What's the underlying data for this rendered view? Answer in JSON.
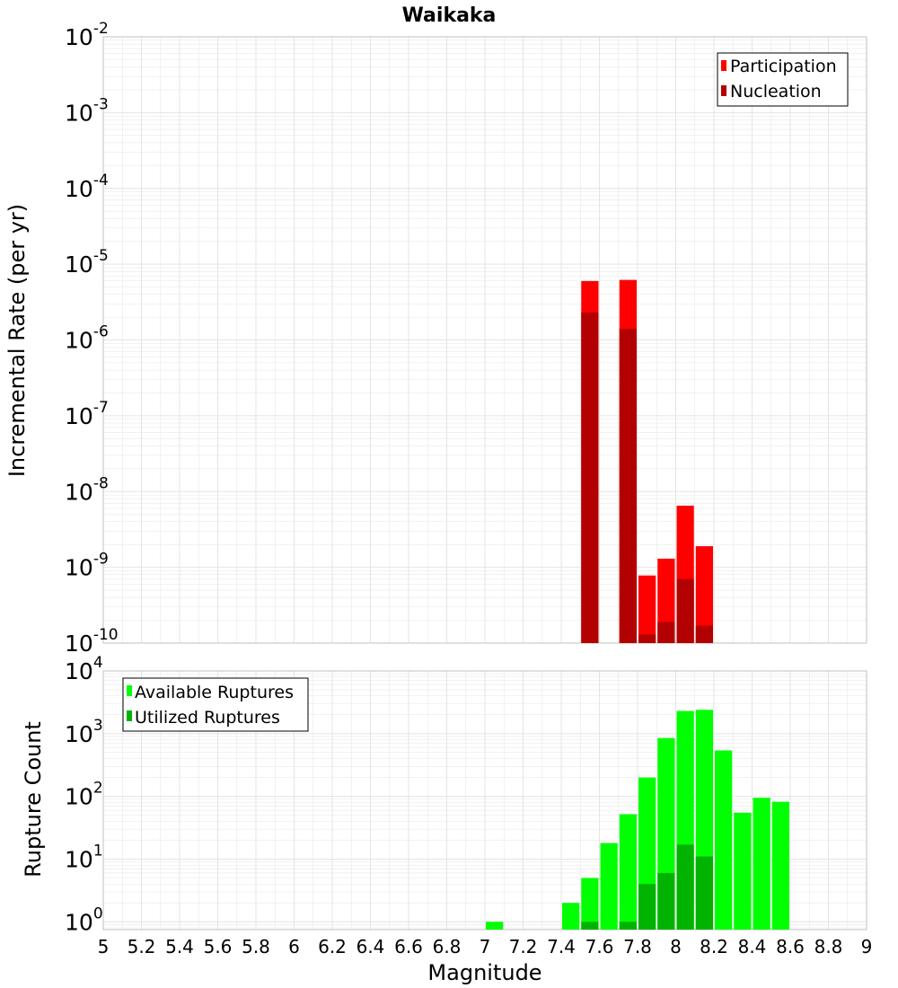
{
  "title": "Waikaka",
  "colors": {
    "participation": "#ff0000",
    "nucleation": "#b30000",
    "available": "#00ff00",
    "utilized": "#00b300",
    "grid": "#e4e4e4",
    "frame": "#c0c0c0"
  },
  "chart_data": [
    {
      "type": "bar",
      "title": "Waikaka",
      "xlabel": "Magnitude",
      "ylabel": "Incremental Rate (per yr)",
      "y_scale": "log",
      "xlim": [
        5,
        9
      ],
      "ylim": [
        1e-10,
        0.01
      ],
      "x_ticks": [
        "5",
        "5.2",
        "5.4",
        "5.6",
        "5.8",
        "6",
        "6.2",
        "6.4",
        "6.6",
        "6.8",
        "7",
        "7.2",
        "7.4",
        "7.6",
        "7.8",
        "8",
        "8.2",
        "8.4",
        "8.6",
        "8.8",
        "9"
      ],
      "y_ticks": [
        {
          "base": "10",
          "exp": "-2"
        },
        {
          "base": "10",
          "exp": "-3"
        },
        {
          "base": "10",
          "exp": "-4"
        },
        {
          "base": "10",
          "exp": "-5"
        },
        {
          "base": "10",
          "exp": "-6"
        },
        {
          "base": "10",
          "exp": "-7"
        },
        {
          "base": "10",
          "exp": "-8"
        },
        {
          "base": "10",
          "exp": "-9"
        },
        {
          "base": "10",
          "exp": "-10"
        }
      ],
      "legend_position": "top-right",
      "grid": true,
      "series": [
        {
          "name": "Participation",
          "x": [
            7.55,
            7.75,
            7.85,
            7.95,
            8.05,
            8.15
          ],
          "values": [
            6e-06,
            6.2e-06,
            7.8e-10,
            1.3e-09,
            6.5e-09,
            1.9e-09
          ]
        },
        {
          "name": "Nucleation",
          "x": [
            7.55,
            7.75,
            7.85,
            7.95,
            8.05,
            8.15
          ],
          "values": [
            2.3e-06,
            1.4e-06,
            1.3e-10,
            1.9e-10,
            7e-10,
            1.7e-10
          ]
        }
      ]
    },
    {
      "type": "bar",
      "xlabel": "Magnitude",
      "ylabel": "Rupture Count",
      "y_scale": "log",
      "xlim": [
        5,
        9
      ],
      "ylim": [
        0.75,
        10000
      ],
      "y_ticks": [
        {
          "base": "10",
          "exp": "4"
        },
        {
          "base": "10",
          "exp": "3"
        },
        {
          "base": "10",
          "exp": "2"
        },
        {
          "base": "10",
          "exp": "1"
        },
        {
          "base": "10",
          "exp": "0"
        }
      ],
      "legend_position": "top-left",
      "grid": true,
      "series": [
        {
          "name": "Available Ruptures",
          "x": [
            7.05,
            7.45,
            7.55,
            7.65,
            7.75,
            7.85,
            7.95,
            8.05,
            8.15,
            8.25,
            8.35,
            8.45,
            8.55
          ],
          "values": [
            1,
            2,
            5,
            18,
            52,
            200,
            850,
            2300,
            2400,
            540,
            55,
            95,
            82
          ]
        },
        {
          "name": "Utilized Ruptures",
          "x": [
            7.55,
            7.75,
            7.85,
            7.95,
            8.05,
            8.15
          ],
          "values": [
            1,
            1,
            4,
            6,
            17,
            11
          ]
        }
      ]
    }
  ]
}
